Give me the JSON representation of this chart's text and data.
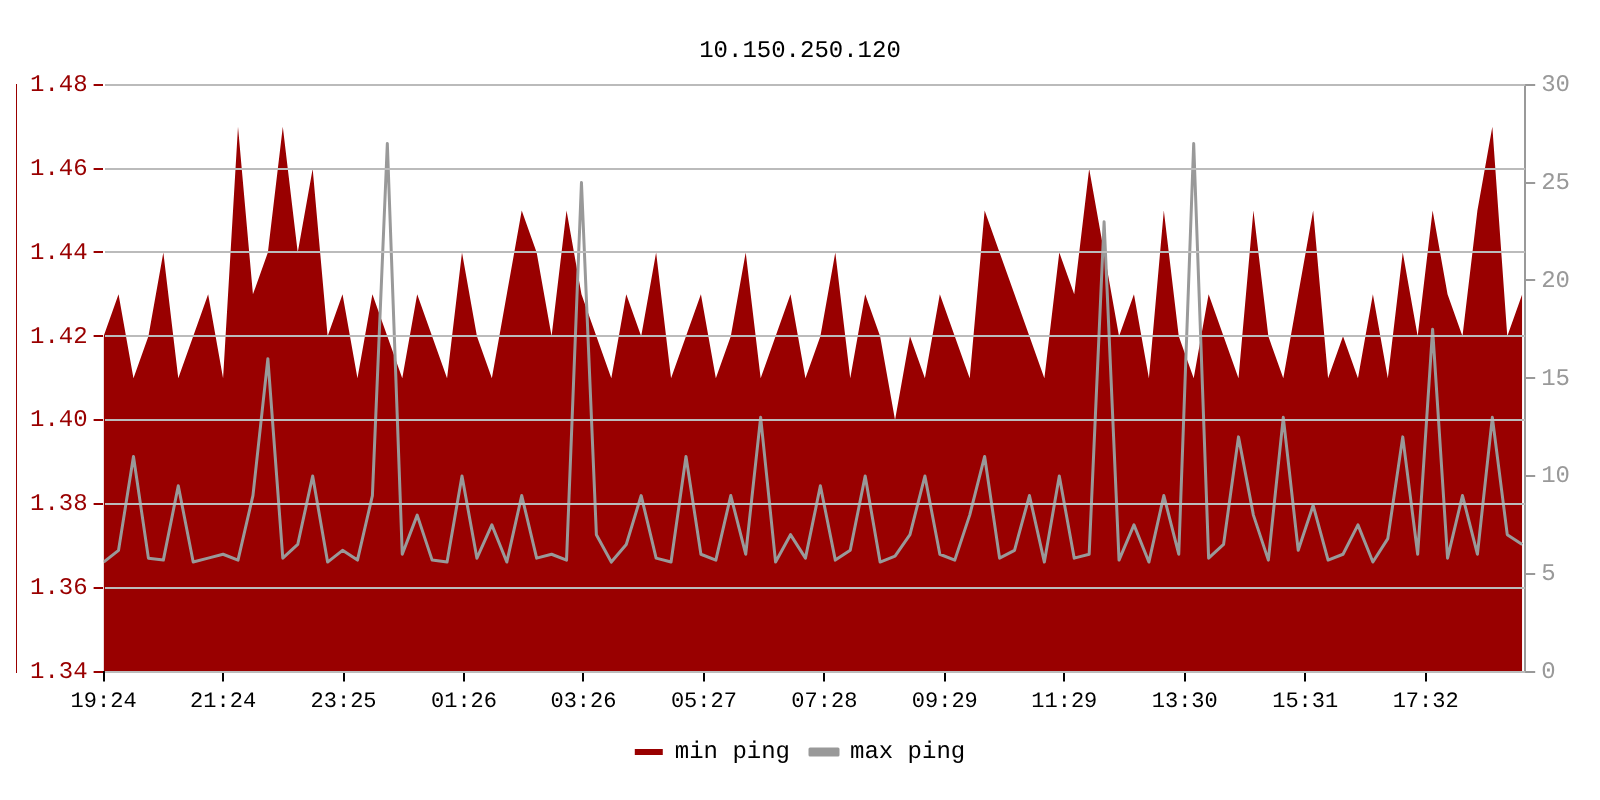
{
  "chart_data": {
    "type": "line",
    "title": "10.150.250.120",
    "x": [
      "--01-01T19:24",
      "--01-01T19:39",
      "--01-01T19:54",
      "--01-01T20:09",
      "--01-01T20:24",
      "--01-01T20:39",
      "--01-01T20:54",
      "--01-01T21:09",
      "--01-01T21:24",
      "--01-01T21:39",
      "--01-01T21:54",
      "--01-01T22:09",
      "--01-01T22:24",
      "--01-01T22:39",
      "--01-01T22:54",
      "--01-01T23:09",
      "--01-01T23:24",
      "--01-01T23:39",
      "--01-01T23:54",
      "--01-02T00:09",
      "--01-02T00:24",
      "--01-02T00:39",
      "--01-02T00:54",
      "--01-02T01:09",
      "--01-02T01:24",
      "--01-02T01:39",
      "--01-02T01:54",
      "--01-02T02:09",
      "--01-02T02:24",
      "--01-02T02:39",
      "--01-02T02:54",
      "--01-02T03:09",
      "--01-02T03:24",
      "--01-02T03:39",
      "--01-02T03:54",
      "--01-02T04:09",
      "--01-02T04:24",
      "--01-02T04:39",
      "--01-02T04:54",
      "--01-02T05:09",
      "--01-02T05:24",
      "--01-02T05:39",
      "--01-02T05:54",
      "--01-02T06:09",
      "--01-02T06:24",
      "--01-02T06:39",
      "--01-02T06:54",
      "--01-02T07:09",
      "--01-02T07:24",
      "--01-02T07:39",
      "--01-02T07:54",
      "--01-02T08:09",
      "--01-02T08:24",
      "--01-02T08:39",
      "--01-02T08:54",
      "--01-02T09:09",
      "--01-02T09:24",
      "--01-02T09:39",
      "--01-02T09:54",
      "--01-02T10:09",
      "--01-02T10:24",
      "--01-02T10:39",
      "--01-02T10:54",
      "--01-02T11:09",
      "--01-02T11:24",
      "--01-02T11:39",
      "--01-02T11:54",
      "--01-02T12:09",
      "--01-02T12:24",
      "--01-02T12:39",
      "--01-02T12:54",
      "--01-02T13:09",
      "--01-02T13:24",
      "--01-02T13:39",
      "--01-02T13:54",
      "--01-02T14:09",
      "--01-02T14:24",
      "--01-02T14:39",
      "--01-02T14:54",
      "--01-02T15:09",
      "--01-02T15:24",
      "--01-02T15:39",
      "--01-02T15:54",
      "--01-02T16:09",
      "--01-02T16:24",
      "--01-02T16:39",
      "--01-02T16:54",
      "--01-02T17:09",
      "--01-02T17:24",
      "--01-02T17:39",
      "--01-02T17:54",
      "--01-02T18:09",
      "--01-02T18:24",
      "--01-02T18:39",
      "--01-02T18:54",
      "--01-02T19:09"
    ],
    "series": [
      {
        "name": "min ping",
        "type": "area",
        "color": "#990000",
        "values": [
          1.42,
          1.43,
          1.41,
          1.42,
          1.44,
          1.41,
          1.42,
          1.43,
          1.41,
          1.47,
          1.43,
          1.44,
          1.47,
          1.44,
          1.46,
          1.42,
          1.43,
          1.41,
          1.43,
          1.42,
          1.41,
          1.43,
          1.42,
          1.41,
          1.44,
          1.42,
          1.41,
          1.43,
          1.45,
          1.44,
          1.42,
          1.45,
          1.43,
          1.42,
          1.41,
          1.43,
          1.42,
          1.44,
          1.41,
          1.42,
          1.43,
          1.41,
          1.42,
          1.44,
          1.41,
          1.42,
          1.43,
          1.41,
          1.42,
          1.44,
          1.41,
          1.43,
          1.42,
          1.4,
          1.42,
          1.41,
          1.43,
          1.42,
          1.41,
          1.45,
          1.44,
          1.43,
          1.42,
          1.41,
          1.44,
          1.43,
          1.46,
          1.44,
          1.42,
          1.43,
          1.41,
          1.45,
          1.42,
          1.41,
          1.43,
          1.42,
          1.41,
          1.45,
          1.42,
          1.41,
          1.43,
          1.45,
          1.41,
          1.42,
          1.41,
          1.43,
          1.41,
          1.44,
          1.42,
          1.45,
          1.43,
          1.42,
          1.45,
          1.47,
          1.42,
          1.43
        ]
      },
      {
        "name": "max ping",
        "type": "line",
        "axis": "y2",
        "color": "#999999",
        "values": [
          5.6,
          6.2,
          11,
          5.8,
          5.7,
          9.5,
          5.6,
          5.8,
          6.0,
          5.7,
          9.0,
          16,
          5.8,
          6.5,
          10,
          5.6,
          6.2,
          5.7,
          9.0,
          27,
          6.0,
          8.0,
          5.7,
          5.6,
          10,
          5.8,
          7.5,
          5.6,
          9.0,
          5.8,
          6.0,
          5.7,
          25,
          7.0,
          5.6,
          6.5,
          9.0,
          5.8,
          5.6,
          11,
          6.0,
          5.7,
          9.0,
          6.0,
          13,
          5.6,
          7.0,
          5.8,
          9.5,
          5.7,
          6.2,
          10,
          5.6,
          5.9,
          7.0,
          10,
          6.0,
          5.7,
          8.0,
          11,
          5.8,
          6.2,
          9.0,
          5.6,
          10,
          5.8,
          6.0,
          23,
          5.7,
          7.5,
          5.6,
          9.0,
          6.0,
          27,
          5.8,
          6.5,
          12,
          8.0,
          5.7,
          13,
          6.2,
          8.5,
          5.7,
          6.0,
          7.5,
          5.6,
          6.8,
          12,
          6.0,
          17.5,
          5.8,
          9.0,
          6.0,
          13,
          7.0,
          6.5
        ]
      }
    ],
    "xlim": [
      "--01-01T19:24",
      "--01-02T19:12"
    ],
    "xticks": [
      {
        "value": "--01-01T19:24",
        "label": "19:24"
      },
      {
        "value": "--01-01T21:24",
        "label": "21:24"
      },
      {
        "value": "--01-01T23:25",
        "label": "23:25"
      },
      {
        "value": "--01-02T01:26",
        "label": "01:26"
      },
      {
        "value": "--01-02T03:26",
        "label": "03:26"
      },
      {
        "value": "--01-02T05:27",
        "label": "05:27"
      },
      {
        "value": "--01-02T07:28",
        "label": "07:28"
      },
      {
        "value": "--01-02T09:29",
        "label": "09:29"
      },
      {
        "value": "--01-02T11:29",
        "label": "11:29"
      },
      {
        "value": "--01-02T13:30",
        "label": "13:30"
      },
      {
        "value": "--01-02T15:31",
        "label": "15:31"
      },
      {
        "value": "--01-02T17:32",
        "label": "17:32"
      }
    ],
    "ylim": [
      1.34,
      1.48
    ],
    "yticks": [
      {
        "value": 1.34,
        "label": "1.34"
      },
      {
        "value": 1.36,
        "label": "1.36"
      },
      {
        "value": 1.38,
        "label": "1.38"
      },
      {
        "value": 1.4,
        "label": "1.40"
      },
      {
        "value": 1.42,
        "label": "1.42"
      },
      {
        "value": 1.44,
        "label": "1.44"
      },
      {
        "value": 1.46,
        "label": "1.46"
      },
      {
        "value": 1.48,
        "label": "1.48"
      }
    ],
    "y2lim": [
      0,
      30
    ],
    "y2ticks": [
      0,
      5,
      10,
      15,
      20,
      25,
      30
    ],
    "grid": "y",
    "legend": "bottom"
  }
}
